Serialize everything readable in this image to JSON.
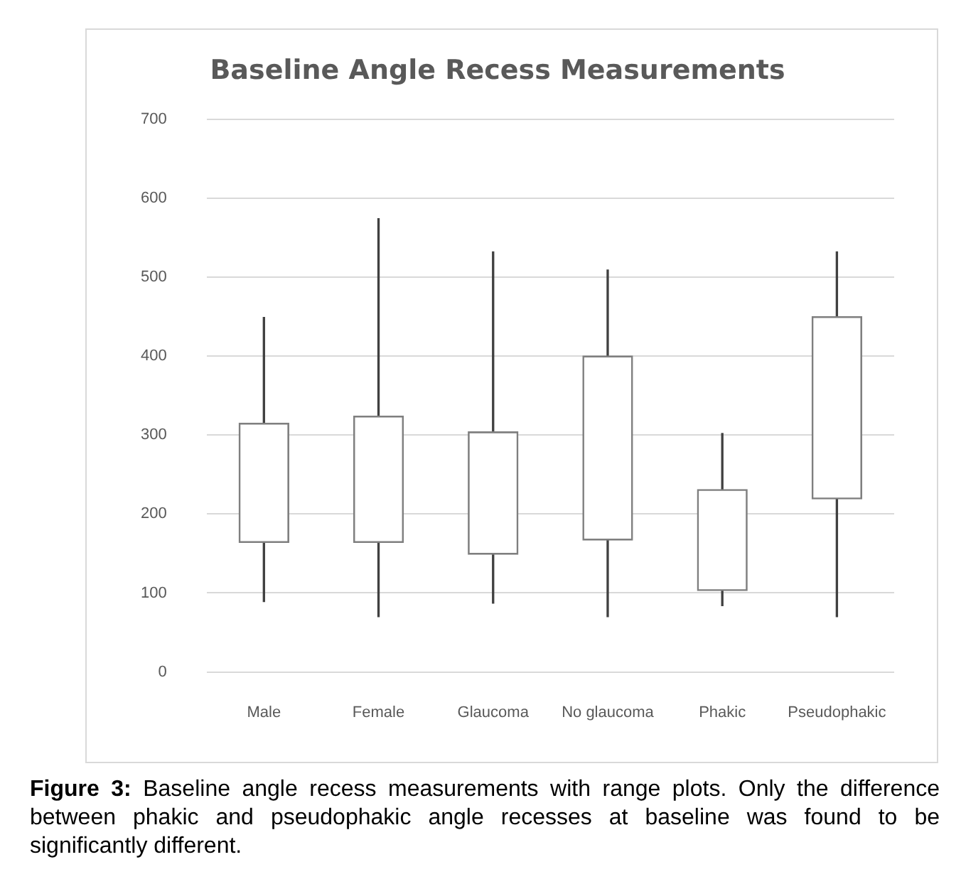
{
  "chart_data": {
    "type": "candlestick",
    "title": "Baseline Angle Recess Measurements",
    "categories": [
      "Male",
      "Female",
      "Glaucoma",
      "No glaucoma",
      "Phakic",
      "Pseudophakic"
    ],
    "ohlc": [
      [
        164,
        449,
        89,
        315
      ],
      [
        164,
        574,
        70,
        324
      ],
      [
        149,
        532,
        87,
        304
      ],
      [
        167,
        509,
        70,
        400
      ],
      [
        103,
        302,
        84,
        231
      ],
      [
        219,
        532,
        70,
        450
      ]
    ],
    "ylim": [
      0,
      700
    ],
    "yticks": [
      0,
      100,
      200,
      300,
      400,
      500,
      600,
      700
    ],
    "grid": "y",
    "legend": false,
    "annotations": [
      "Figure 3:",
      "Baseline angle recess measurements with range plots. Only the difference between phakic and pseudophakic angle recesses at baseline was found to be significantly different."
    ]
  }
}
